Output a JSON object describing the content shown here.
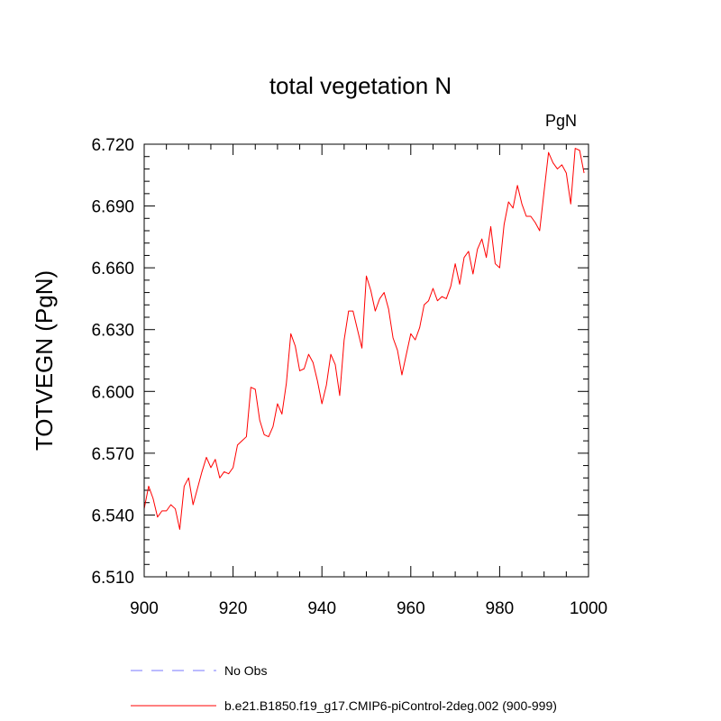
{
  "chart_data": {
    "type": "line",
    "title": "total vegetation N",
    "units": "PgN",
    "ylabel": "TOTVEGN  (PgN)",
    "xlabel": "",
    "xlim": [
      900,
      1000
    ],
    "ylim": [
      6.51,
      6.72
    ],
    "x_ticks": [
      900,
      920,
      940,
      960,
      980,
      1000
    ],
    "x_tick_labels": [
      "900",
      "920",
      "940",
      "960",
      "980",
      "1000"
    ],
    "y_ticks": [
      6.51,
      6.54,
      6.57,
      6.6,
      6.63,
      6.66,
      6.69,
      6.72
    ],
    "y_tick_labels": [
      "6.510",
      "6.540",
      "6.570",
      "6.600",
      "6.630",
      "6.660",
      "6.690",
      "6.720"
    ],
    "grid": false,
    "legend_position": "bottom",
    "series": [
      {
        "name": "No Obs",
        "color": "#7777ff",
        "dash": "dashed",
        "x": [],
        "values": []
      },
      {
        "name": "b.e21.B1850.f19_g17.CMIP6-piControl-2deg.002 (900-999)",
        "color": "#ff0000",
        "dash": "solid",
        "x": [
          900,
          901,
          902,
          903,
          904,
          905,
          906,
          907,
          908,
          909,
          910,
          911,
          912,
          913,
          914,
          915,
          916,
          917,
          918,
          919,
          920,
          921,
          922,
          923,
          924,
          925,
          926,
          927,
          928,
          929,
          930,
          931,
          932,
          933,
          934,
          935,
          936,
          937,
          938,
          939,
          940,
          941,
          942,
          943,
          944,
          945,
          946,
          947,
          948,
          949,
          950,
          951,
          952,
          953,
          954,
          955,
          956,
          957,
          958,
          959,
          960,
          961,
          962,
          963,
          964,
          965,
          966,
          967,
          968,
          969,
          970,
          971,
          972,
          973,
          974,
          975,
          976,
          977,
          978,
          979,
          980,
          981,
          982,
          983,
          984,
          985,
          986,
          987,
          988,
          989,
          990,
          991,
          992,
          993,
          994,
          995,
          996,
          997,
          998,
          999
        ],
        "values": [
          6.543,
          6.554,
          6.548,
          6.539,
          6.542,
          6.542,
          6.545,
          6.543,
          6.533,
          6.554,
          6.558,
          6.545,
          6.553,
          6.561,
          6.568,
          6.563,
          6.567,
          6.558,
          6.561,
          6.56,
          6.563,
          6.574,
          6.576,
          6.578,
          6.602,
          6.601,
          6.586,
          6.579,
          6.578,
          6.583,
          6.594,
          6.589,
          6.604,
          6.628,
          6.622,
          6.61,
          6.611,
          6.618,
          6.614,
          6.605,
          6.594,
          6.603,
          6.618,
          6.613,
          6.598,
          6.625,
          6.639,
          6.639,
          6.63,
          6.621,
          6.656,
          6.649,
          6.639,
          6.645,
          6.648,
          6.64,
          6.626,
          6.62,
          6.608,
          6.618,
          6.628,
          6.625,
          6.631,
          6.642,
          6.644,
          6.65,
          6.644,
          6.646,
          6.645,
          6.651,
          6.662,
          6.652,
          6.665,
          6.668,
          6.657,
          6.669,
          6.674,
          6.665,
          6.68,
          6.662,
          6.66,
          6.681,
          6.692,
          6.689,
          6.7,
          6.691,
          6.685,
          6.685,
          6.682,
          6.678,
          6.697,
          6.716,
          6.711,
          6.708,
          6.71,
          6.706,
          6.691,
          6.718,
          6.717,
          6.706
        ]
      }
    ]
  }
}
